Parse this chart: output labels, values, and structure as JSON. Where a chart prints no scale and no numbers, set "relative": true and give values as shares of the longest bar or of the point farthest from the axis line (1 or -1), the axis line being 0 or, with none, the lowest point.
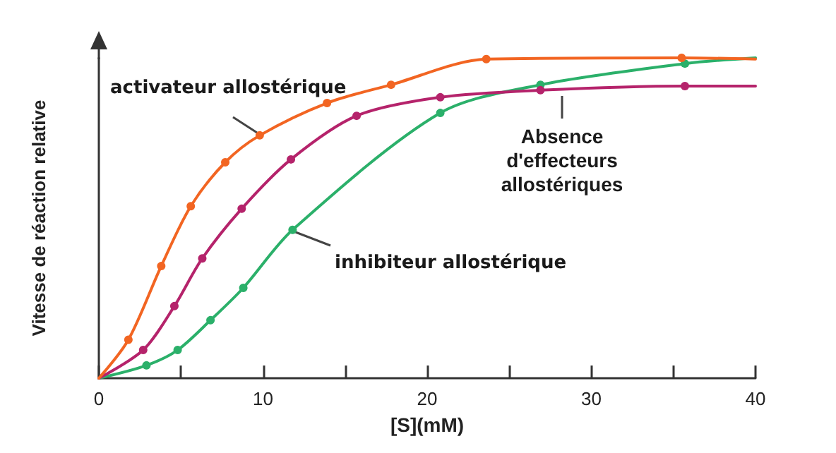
{
  "chart_data": {
    "type": "line",
    "xlabel": "[S](mM)",
    "ylabel": "Vitesse de réaction relative",
    "relative": true,
    "xlim": [
      0,
      40
    ],
    "xticks": [
      0,
      {
        "value": 5,
        "label": null
      },
      10,
      {
        "value": 15,
        "label": null
      },
      20,
      {
        "value": 25,
        "label": null
      },
      30,
      {
        "value": 35,
        "label": null
      },
      40
    ],
    "grid": false,
    "legend": false,
    "marker": "circle",
    "line_style": "solid",
    "series": [
      {
        "name": "activateur allostérique",
        "color": "#f26522",
        "x": [
          0,
          1.8,
          3.8,
          5.6,
          7.7,
          9.8,
          13.9,
          17.8,
          23.6,
          35.5,
          40
        ],
        "values": [
          0,
          0.12,
          0.35,
          0.537,
          0.674,
          0.758,
          0.859,
          0.916,
          0.996,
          1.0,
          0.996
        ]
      },
      {
        "name": "Absence d'effecteurs allostériques",
        "color": "#b5236b",
        "x": [
          0,
          2.7,
          4.6,
          6.3,
          8.7,
          11.7,
          15.7,
          20.8,
          26.9,
          35.7,
          40
        ],
        "values": [
          0,
          0.088,
          0.225,
          0.374,
          0.529,
          0.683,
          0.819,
          0.877,
          0.899,
          0.912,
          0.912
        ]
      },
      {
        "name": "inhibiteur allostérique",
        "color": "#2bb06a",
        "x": [
          0,
          2.9,
          4.8,
          6.8,
          8.8,
          11.8,
          20.8,
          26.9,
          35.7,
          40
        ],
        "values": [
          0,
          0.04,
          0.088,
          0.181,
          0.282,
          0.463,
          0.828,
          0.916,
          0.982,
          1.0
        ]
      }
    ]
  }
}
